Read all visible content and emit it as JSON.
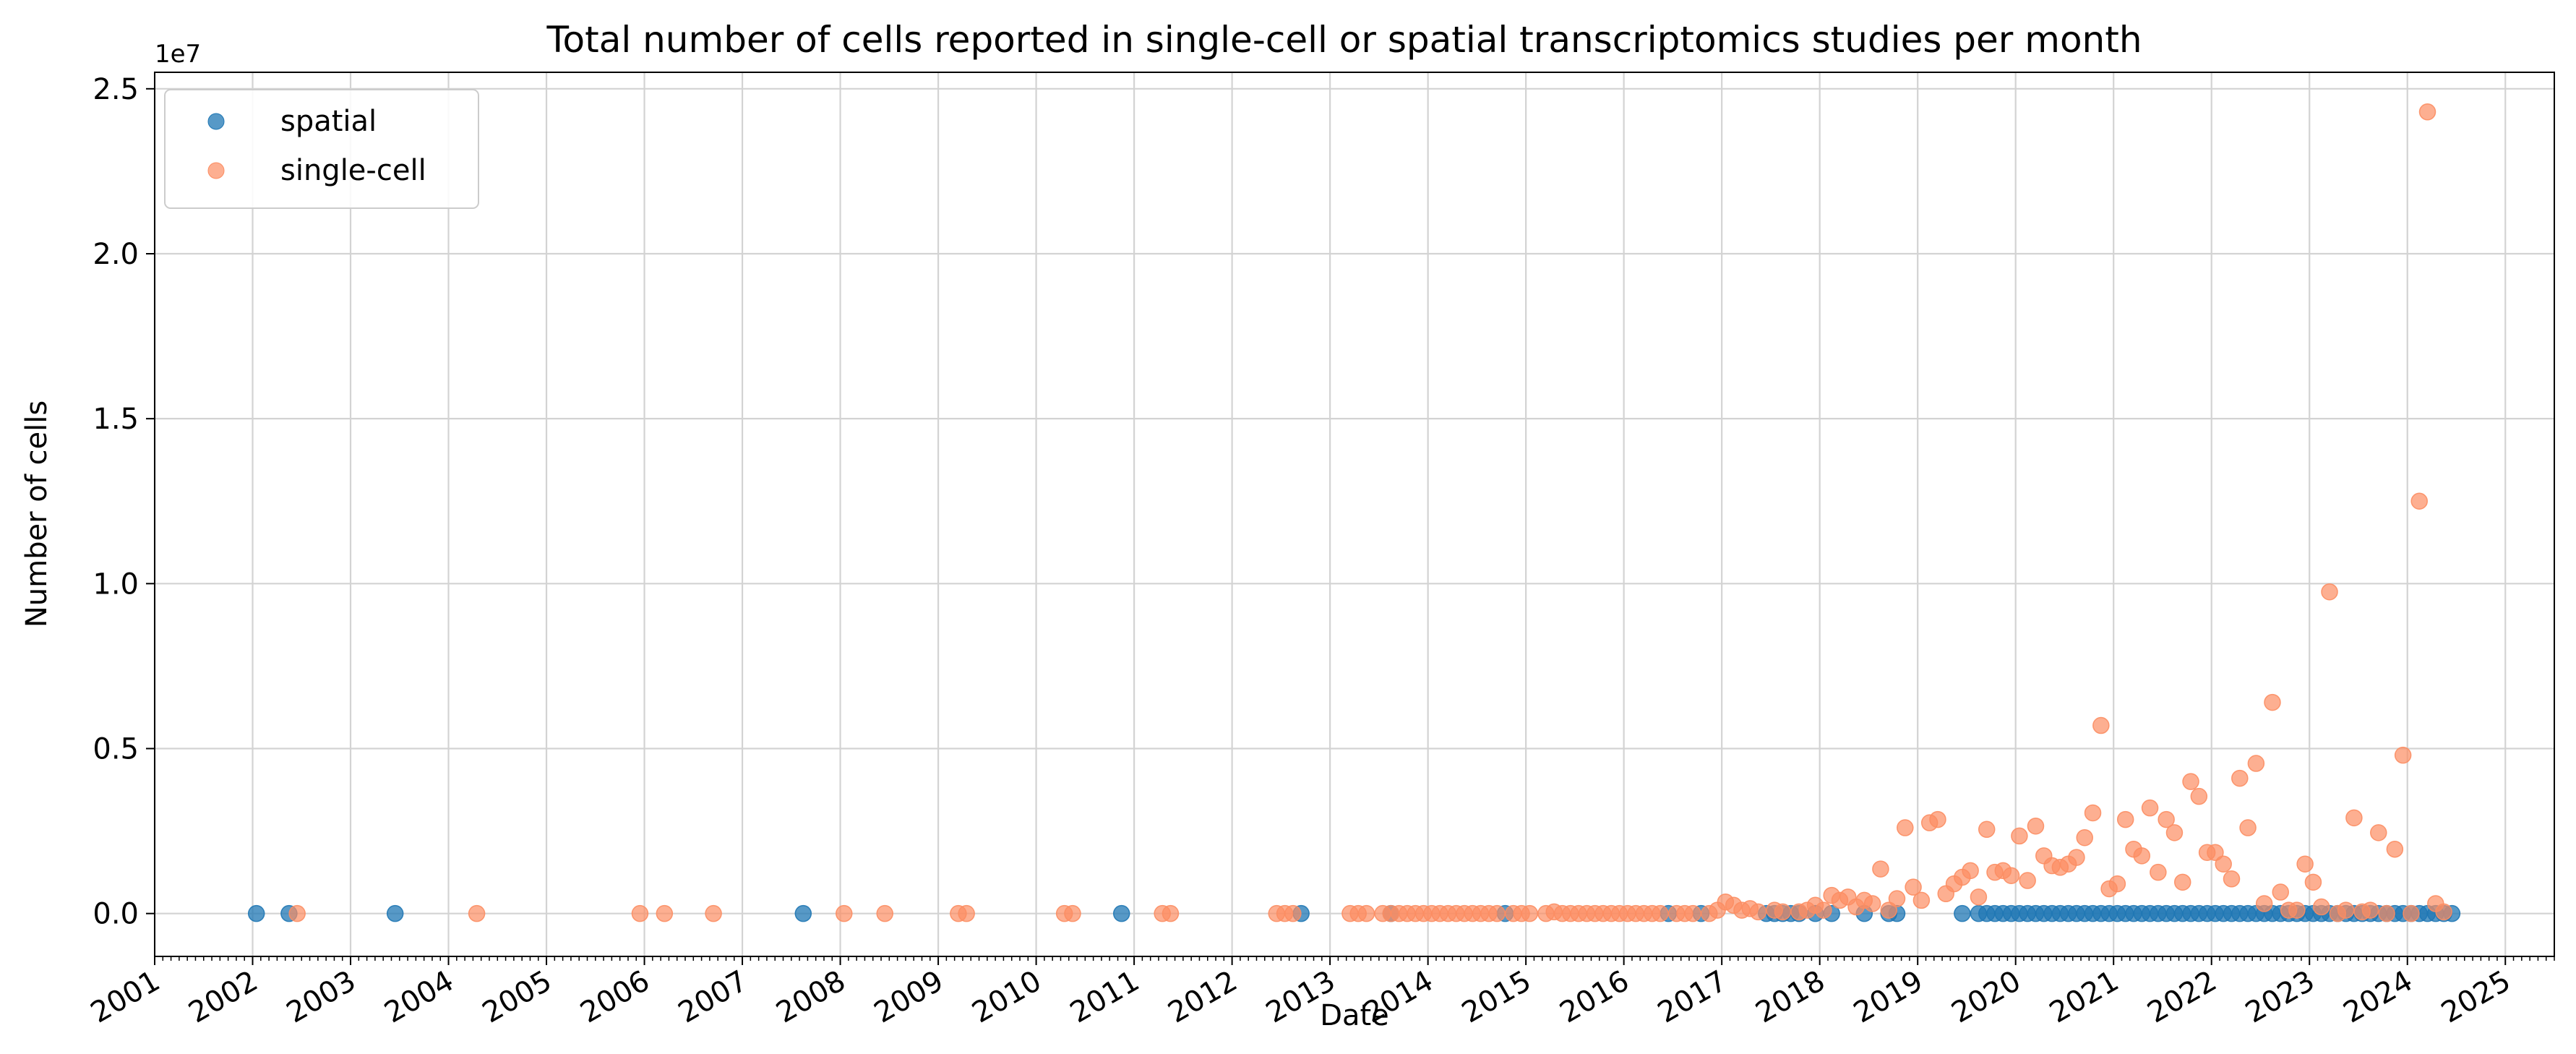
{
  "chart_data": {
    "type": "scatter",
    "title": "Total number of cells reported in single-cell or spatial transcriptomics studies per month",
    "xlabel": "Date",
    "ylabel": "Number of cells",
    "y_offset_text": "1e7",
    "xlim": [
      "2001-01-01",
      "2025-07-01"
    ],
    "ylim": [
      -1300000,
      25500000
    ],
    "x_ticks": [
      "2001",
      "2002",
      "2003",
      "2004",
      "2005",
      "2006",
      "2007",
      "2008",
      "2009",
      "2010",
      "2011",
      "2012",
      "2013",
      "2014",
      "2015",
      "2016",
      "2017",
      "2018",
      "2019",
      "2020",
      "2021",
      "2022",
      "2023",
      "2024",
      "2025"
    ],
    "y_ticks": [
      0,
      5000000,
      10000000,
      15000000,
      20000000,
      25000000
    ],
    "y_tick_labels": [
      "0.0",
      "0.5",
      "1.0",
      "1.5",
      "2.0",
      "2.5"
    ],
    "grid": true,
    "legend": {
      "position": "top-left"
    },
    "series": [
      {
        "name": "spatial",
        "color": "#1f77b4",
        "points": [
          [
            "2002-01",
            0
          ],
          [
            "2002-05",
            0
          ],
          [
            "2003-06",
            0
          ],
          [
            "2007-08",
            0
          ],
          [
            "2010-11",
            0
          ],
          [
            "2012-09",
            0
          ],
          [
            "2013-08",
            0
          ],
          [
            "2014-10",
            0
          ],
          [
            "2016-06",
            0
          ],
          [
            "2016-10",
            0
          ],
          [
            "2017-06",
            0
          ],
          [
            "2017-07",
            0
          ],
          [
            "2017-08",
            0
          ],
          [
            "2017-09",
            0
          ],
          [
            "2017-10",
            0
          ],
          [
            "2017-12",
            0
          ],
          [
            "2018-02",
            0
          ],
          [
            "2018-06",
            0
          ],
          [
            "2018-09",
            0
          ],
          [
            "2018-10",
            0
          ],
          [
            "2019-06",
            0
          ],
          [
            "2019-08",
            0
          ],
          [
            "2019-09",
            0
          ],
          [
            "2019-10",
            0
          ],
          [
            "2019-11",
            0
          ],
          [
            "2019-12",
            0
          ],
          [
            "2020-01",
            0
          ],
          [
            "2020-02",
            0
          ],
          [
            "2020-03",
            0
          ],
          [
            "2020-04",
            0
          ],
          [
            "2020-05",
            0
          ],
          [
            "2020-06",
            0
          ],
          [
            "2020-07",
            0
          ],
          [
            "2020-08",
            0
          ],
          [
            "2020-09",
            0
          ],
          [
            "2020-10",
            0
          ],
          [
            "2020-11",
            0
          ],
          [
            "2020-12",
            0
          ],
          [
            "2021-01",
            0
          ],
          [
            "2021-02",
            0
          ],
          [
            "2021-03",
            0
          ],
          [
            "2021-04",
            0
          ],
          [
            "2021-05",
            0
          ],
          [
            "2021-06",
            0
          ],
          [
            "2021-07",
            0
          ],
          [
            "2021-08",
            0
          ],
          [
            "2021-09",
            0
          ],
          [
            "2021-10",
            0
          ],
          [
            "2021-11",
            0
          ],
          [
            "2021-12",
            0
          ],
          [
            "2022-01",
            0
          ],
          [
            "2022-02",
            0
          ],
          [
            "2022-03",
            0
          ],
          [
            "2022-04",
            0
          ],
          [
            "2022-05",
            0
          ],
          [
            "2022-06",
            0
          ],
          [
            "2022-07",
            0
          ],
          [
            "2022-08",
            0
          ],
          [
            "2022-09",
            0
          ],
          [
            "2022-10",
            0
          ],
          [
            "2022-11",
            0
          ],
          [
            "2022-12",
            0
          ],
          [
            "2023-01",
            0
          ],
          [
            "2023-02",
            0
          ],
          [
            "2023-03",
            0
          ],
          [
            "2023-04",
            0
          ],
          [
            "2023-05",
            0
          ],
          [
            "2023-06",
            0
          ],
          [
            "2023-07",
            0
          ],
          [
            "2023-08",
            0
          ],
          [
            "2023-09",
            0
          ],
          [
            "2023-10",
            0
          ],
          [
            "2023-11",
            0
          ],
          [
            "2023-12",
            0
          ],
          [
            "2024-01",
            0
          ],
          [
            "2024-02",
            0
          ],
          [
            "2024-03",
            0
          ],
          [
            "2024-04",
            0
          ],
          [
            "2024-05",
            0
          ],
          [
            "2024-06",
            0
          ]
        ]
      },
      {
        "name": "single-cell",
        "color": "#fc8d62",
        "points": [
          [
            "2002-06",
            0
          ],
          [
            "2004-04",
            0
          ],
          [
            "2005-12",
            0
          ],
          [
            "2006-03",
            0
          ],
          [
            "2006-09",
            0
          ],
          [
            "2008-01",
            0
          ],
          [
            "2008-06",
            0
          ],
          [
            "2009-03",
            0
          ],
          [
            "2009-04",
            0
          ],
          [
            "2010-04",
            0
          ],
          [
            "2010-05",
            0
          ],
          [
            "2011-04",
            0
          ],
          [
            "2011-05",
            0
          ],
          [
            "2012-06",
            0
          ],
          [
            "2012-07",
            0
          ],
          [
            "2012-08",
            0
          ],
          [
            "2013-03",
            0
          ],
          [
            "2013-04",
            0
          ],
          [
            "2013-05",
            0
          ],
          [
            "2013-07",
            0
          ],
          [
            "2013-08",
            0
          ],
          [
            "2013-09",
            0
          ],
          [
            "2013-10",
            0
          ],
          [
            "2013-11",
            0
          ],
          [
            "2013-12",
            0
          ],
          [
            "2014-01",
            0
          ],
          [
            "2014-02",
            0
          ],
          [
            "2014-03",
            0
          ],
          [
            "2014-04",
            0
          ],
          [
            "2014-05",
            0
          ],
          [
            "2014-06",
            0
          ],
          [
            "2014-07",
            0
          ],
          [
            "2014-08",
            0
          ],
          [
            "2014-09",
            0
          ],
          [
            "2014-11",
            0
          ],
          [
            "2014-12",
            0
          ],
          [
            "2015-01",
            0
          ],
          [
            "2015-03",
            0
          ],
          [
            "2015-04",
            50000
          ],
          [
            "2015-05",
            0
          ],
          [
            "2015-06",
            0
          ],
          [
            "2015-07",
            0
          ],
          [
            "2015-08",
            0
          ],
          [
            "2015-09",
            0
          ],
          [
            "2015-10",
            0
          ],
          [
            "2015-11",
            0
          ],
          [
            "2015-12",
            0
          ],
          [
            "2016-01",
            0
          ],
          [
            "2016-02",
            0
          ],
          [
            "2016-03",
            0
          ],
          [
            "2016-04",
            0
          ],
          [
            "2016-05",
            0
          ],
          [
            "2016-07",
            0
          ],
          [
            "2016-08",
            0
          ],
          [
            "2016-09",
            0
          ],
          [
            "2016-11",
            0
          ],
          [
            "2016-12",
            100000
          ],
          [
            "2017-01",
            350000
          ],
          [
            "2017-02",
            250000
          ],
          [
            "2017-03",
            100000
          ],
          [
            "2017-04",
            150000
          ],
          [
            "2017-05",
            50000
          ],
          [
            "2017-07",
            100000
          ],
          [
            "2017-08",
            50000
          ],
          [
            "2017-10",
            50000
          ],
          [
            "2017-11",
            100000
          ],
          [
            "2017-12",
            250000
          ],
          [
            "2018-01",
            100000
          ],
          [
            "2018-02",
            550000
          ],
          [
            "2018-03",
            400000
          ],
          [
            "2018-04",
            500000
          ],
          [
            "2018-05",
            200000
          ],
          [
            "2018-06",
            400000
          ],
          [
            "2018-07",
            300000
          ],
          [
            "2018-08",
            1350000
          ],
          [
            "2018-09",
            100000
          ],
          [
            "2018-10",
            450000
          ],
          [
            "2018-11",
            2600000
          ],
          [
            "2018-12",
            800000
          ],
          [
            "2019-01",
            400000
          ],
          [
            "2019-02",
            2750000
          ],
          [
            "2019-03",
            2850000
          ],
          [
            "2019-04",
            600000
          ],
          [
            "2019-05",
            900000
          ],
          [
            "2019-06",
            1100000
          ],
          [
            "2019-07",
            1300000
          ],
          [
            "2019-08",
            500000
          ],
          [
            "2019-09",
            2550000
          ],
          [
            "2019-10",
            1250000
          ],
          [
            "2019-11",
            1300000
          ],
          [
            "2019-12",
            1150000
          ],
          [
            "2020-01",
            2350000
          ],
          [
            "2020-02",
            1000000
          ],
          [
            "2020-03",
            2650000
          ],
          [
            "2020-04",
            1750000
          ],
          [
            "2020-05",
            1450000
          ],
          [
            "2020-06",
            1400000
          ],
          [
            "2020-07",
            1500000
          ],
          [
            "2020-08",
            1700000
          ],
          [
            "2020-09",
            2300000
          ],
          [
            "2020-10",
            3050000
          ],
          [
            "2020-11",
            5700000
          ],
          [
            "2020-12",
            750000
          ],
          [
            "2021-01",
            900000
          ],
          [
            "2021-02",
            2850000
          ],
          [
            "2021-03",
            1950000
          ],
          [
            "2021-04",
            1750000
          ],
          [
            "2021-05",
            3200000
          ],
          [
            "2021-06",
            1250000
          ],
          [
            "2021-07",
            2850000
          ],
          [
            "2021-08",
            2450000
          ],
          [
            "2021-09",
            950000
          ],
          [
            "2021-10",
            4000000
          ],
          [
            "2021-11",
            3550000
          ],
          [
            "2021-12",
            1850000
          ],
          [
            "2022-01",
            1850000
          ],
          [
            "2022-02",
            1500000
          ],
          [
            "2022-03",
            1050000
          ],
          [
            "2022-04",
            4100000
          ],
          [
            "2022-05",
            2600000
          ],
          [
            "2022-06",
            4550000
          ],
          [
            "2022-07",
            300000
          ],
          [
            "2022-08",
            6400000
          ],
          [
            "2022-09",
            650000
          ],
          [
            "2022-10",
            100000
          ],
          [
            "2022-11",
            100000
          ],
          [
            "2022-12",
            1500000
          ],
          [
            "2023-01",
            950000
          ],
          [
            "2023-02",
            200000
          ],
          [
            "2023-03",
            9750000
          ],
          [
            "2023-04",
            0
          ],
          [
            "2023-05",
            100000
          ],
          [
            "2023-06",
            2900000
          ],
          [
            "2023-07",
            50000
          ],
          [
            "2023-08",
            100000
          ],
          [
            "2023-09",
            2450000
          ],
          [
            "2023-10",
            0
          ],
          [
            "2023-11",
            1950000
          ],
          [
            "2023-12",
            4800000
          ],
          [
            "2024-01",
            0
          ],
          [
            "2024-02",
            12500000
          ],
          [
            "2024-03",
            24300000
          ],
          [
            "2024-04",
            300000
          ],
          [
            "2024-05",
            50000
          ]
        ]
      }
    ]
  }
}
